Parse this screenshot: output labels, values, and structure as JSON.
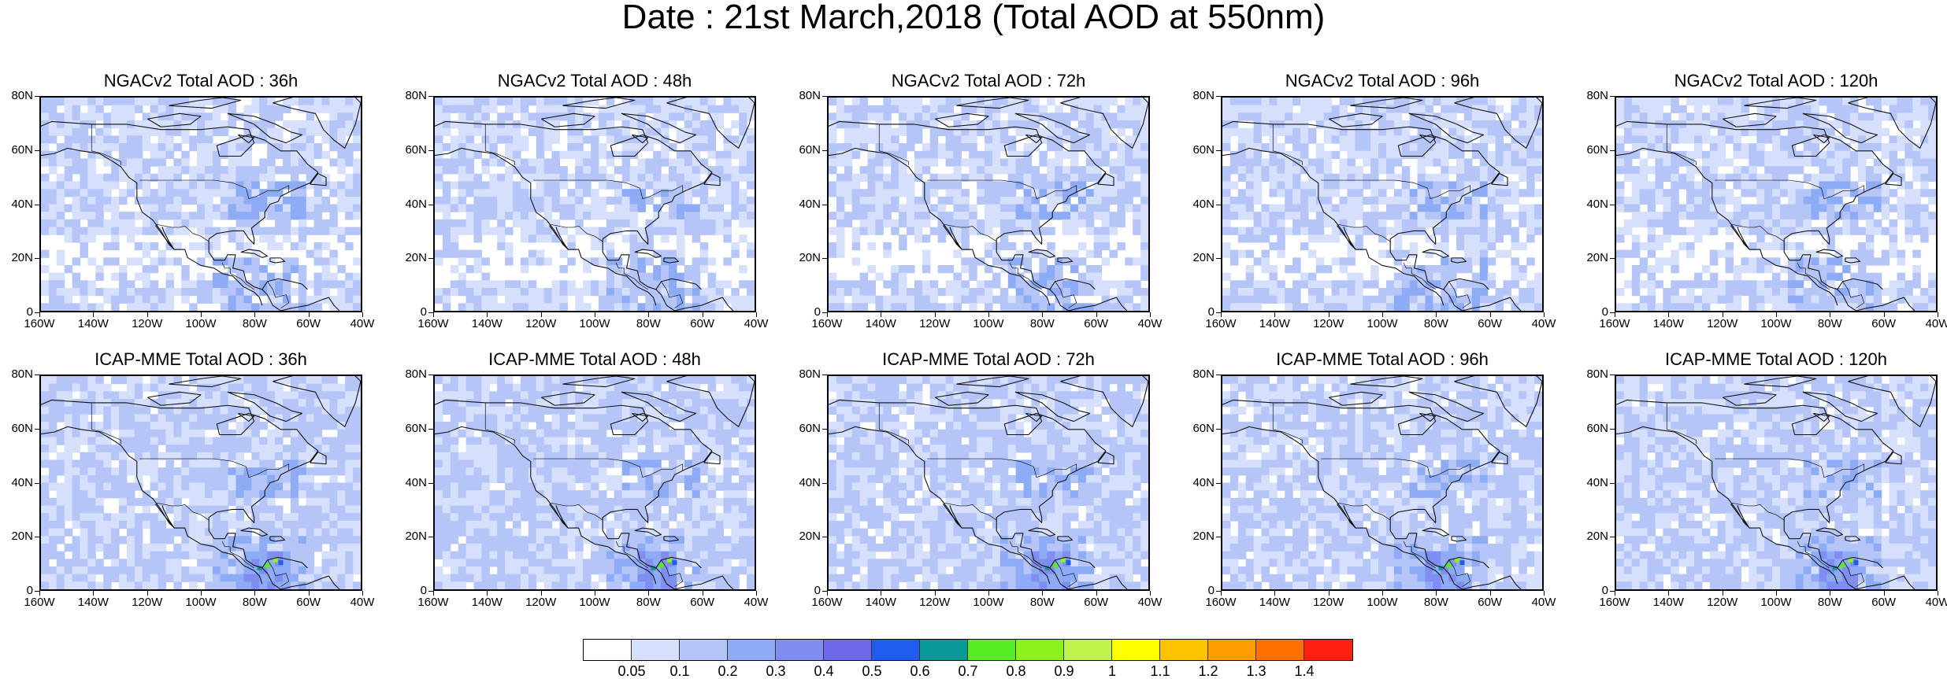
{
  "title": "Date : 21st March,2018 (Total AOD at 550nm)",
  "panels": [
    {
      "title": "NGACv2 Total AOD : 36h",
      "model": "NGACv2",
      "lead": "36h"
    },
    {
      "title": "NGACv2 Total AOD : 48h",
      "model": "NGACv2",
      "lead": "48h"
    },
    {
      "title": "NGACv2 Total AOD : 72h",
      "model": "NGACv2",
      "lead": "72h"
    },
    {
      "title": "NGACv2 Total AOD : 96h",
      "model": "NGACv2",
      "lead": "96h"
    },
    {
      "title": "NGACv2 Total AOD : 120h",
      "model": "NGACv2",
      "lead": "120h"
    },
    {
      "title": "ICAP-MME Total AOD : 36h",
      "model": "ICAP-MME",
      "lead": "36h"
    },
    {
      "title": "ICAP-MME Total AOD : 48h",
      "model": "ICAP-MME",
      "lead": "48h"
    },
    {
      "title": "ICAP-MME Total AOD : 72h",
      "model": "ICAP-MME",
      "lead": "72h"
    },
    {
      "title": "ICAP-MME Total AOD : 96h",
      "model": "ICAP-MME",
      "lead": "96h"
    },
    {
      "title": "ICAP-MME Total AOD : 120h",
      "model": "ICAP-MME",
      "lead": "120h"
    }
  ],
  "lon_ticks": [
    {
      "value": -160,
      "label": "160W"
    },
    {
      "value": -140,
      "label": "140W"
    },
    {
      "value": -120,
      "label": "120W"
    },
    {
      "value": -100,
      "label": "100W"
    },
    {
      "value": -80,
      "label": "80W"
    },
    {
      "value": -60,
      "label": "60W"
    },
    {
      "value": -40,
      "label": "40W"
    }
  ],
  "lat_ticks": [
    {
      "value": 80,
      "label": "80N"
    },
    {
      "value": 60,
      "label": "60N"
    },
    {
      "value": 40,
      "label": "40N"
    },
    {
      "value": 20,
      "label": "20N"
    },
    {
      "value": 0,
      "label": "0"
    }
  ],
  "lon_range": [
    -160,
    -40
  ],
  "lat_range": [
    0,
    80
  ],
  "colorbar": {
    "colors": [
      "#ffffff",
      "#d6dffc",
      "#b5c5f7",
      "#8eabf5",
      "#7f8ef0",
      "#6d69ea",
      "#1f5cf0",
      "#0a9999",
      "#55ee22",
      "#8cf01b",
      "#bff24a",
      "#ffff00",
      "#ffc400",
      "#ff9c00",
      "#ff7000",
      "#ff2010"
    ],
    "labels": [
      "0.05",
      "0.1",
      "0.2",
      "0.3",
      "0.4",
      "0.5",
      "0.6",
      "0.7",
      "0.8",
      "0.9",
      "1",
      "1.1",
      "1.2",
      "1.3",
      "1.4"
    ]
  }
}
